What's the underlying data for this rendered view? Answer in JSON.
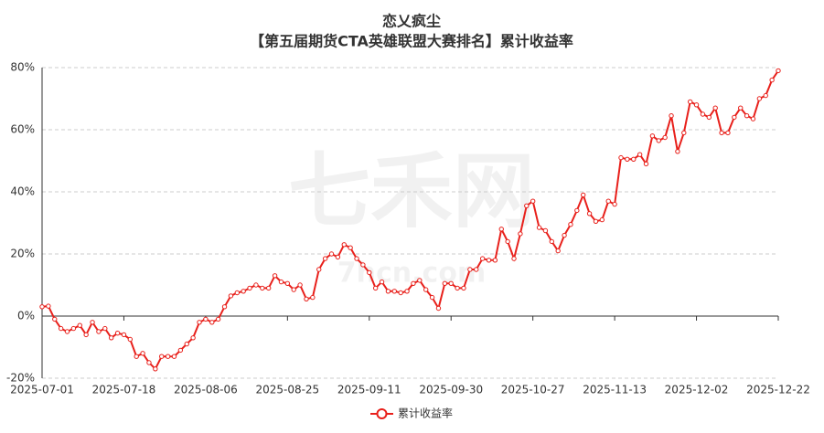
{
  "chart_data": {
    "type": "line",
    "title": "恋乂疯尘",
    "subtitle": "【第五届期货CTA英雄联盟大赛排名】累计收益率",
    "watermark": "七禾网",
    "watermark_url": "7hcn.com",
    "categories": [
      "2025-07-01",
      null,
      null,
      null,
      null,
      null,
      null,
      null,
      null,
      null,
      null,
      null,
      null,
      "2025-07-18",
      null,
      null,
      null,
      null,
      null,
      null,
      null,
      null,
      null,
      null,
      null,
      null,
      "2025-08-06",
      null,
      null,
      null,
      null,
      null,
      null,
      null,
      null,
      null,
      null,
      null,
      null,
      "2025-08-25",
      null,
      null,
      null,
      null,
      null,
      null,
      null,
      null,
      null,
      null,
      null,
      null,
      "2025-09-11",
      null,
      null,
      null,
      null,
      null,
      null,
      null,
      null,
      null,
      null,
      null,
      null,
      "2025-09-30",
      null,
      null,
      null,
      null,
      null,
      null,
      null,
      null,
      null,
      null,
      null,
      null,
      "2025-10-27",
      null,
      null,
      null,
      null,
      null,
      null,
      null,
      null,
      null,
      null,
      null,
      null,
      "2025-11-13",
      null,
      null,
      null,
      null,
      null,
      null,
      null,
      null,
      null,
      null,
      null,
      null,
      "2025-12-02",
      null,
      null,
      null,
      null,
      null,
      null,
      null,
      null,
      null,
      null,
      null,
      null,
      "2025-12-22"
    ],
    "series": [
      {
        "name": "累计收益率",
        "color": "#e8201b",
        "values": [
          3,
          3.2,
          -1,
          -4,
          -5,
          -4,
          -3,
          -6,
          -2,
          -5,
          -4,
          -7,
          -5.5,
          -6,
          -7.5,
          -13,
          -12,
          -15,
          -17,
          -13,
          -13,
          -13,
          -11,
          -9,
          -7,
          -2,
          -1,
          -2,
          -1,
          3,
          6.5,
          7.5,
          8,
          9,
          10,
          9,
          9,
          13,
          11,
          10.5,
          8.5,
          10,
          5.5,
          6,
          15,
          18.5,
          20,
          19,
          23,
          22,
          18.5,
          16.5,
          14,
          9,
          11,
          8,
          8,
          7.5,
          8,
          10.5,
          11.5,
          8.5,
          6,
          2.5,
          10.5,
          10.5,
          9,
          9,
          15,
          15,
          18.5,
          18,
          18,
          28,
          24,
          18.5,
          26.5,
          35.5,
          37,
          28.5,
          27.5,
          24,
          21,
          26,
          29.5,
          34,
          39,
          33,
          30.5,
          31,
          37,
          36,
          51,
          50.5,
          50.5,
          52,
          49,
          58,
          56.5,
          57.5,
          64.5,
          53,
          59,
          69,
          68,
          65,
          64,
          67,
          59,
          59,
          64,
          67,
          64.5,
          63.5,
          70,
          71,
          76,
          79
        ]
      }
    ],
    "ylim": [
      -20,
      80
    ],
    "yticks": [
      {
        "value": -20,
        "label": "-20%"
      },
      {
        "value": 0,
        "label": "0%"
      },
      {
        "value": 20,
        "label": "20%"
      },
      {
        "value": 40,
        "label": "40%"
      },
      {
        "value": 60,
        "label": "60%"
      },
      {
        "value": 80,
        "label": "80%"
      }
    ],
    "grid": true
  }
}
